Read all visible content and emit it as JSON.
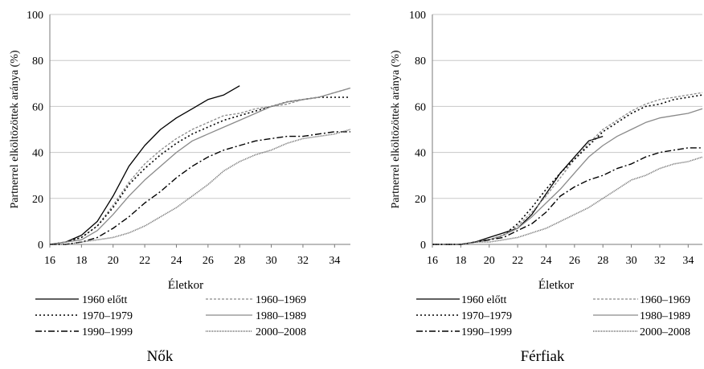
{
  "charts": [
    {
      "caption": "Nők",
      "chart_data": {
        "type": "line",
        "title": "",
        "xlabel": "Életkor",
        "ylabel": "Partnerrel elköltözöttek aránya (%)",
        "xlim": [
          16,
          35
        ],
        "ylim": [
          0,
          100
        ],
        "xticks": [
          "16",
          "18",
          "20",
          "22",
          "24",
          "26",
          "28",
          "30",
          "32",
          "34"
        ],
        "yticks": [
          "0",
          "20",
          "40",
          "60",
          "80",
          "100"
        ],
        "grid": true,
        "legend": "bottom",
        "series": [
          {
            "name": "1960 előtt",
            "x": [
              16,
              17,
              18,
              19,
              20,
              21,
              22,
              23,
              24,
              25,
              26,
              27,
              28
            ],
            "values": [
              0,
              1,
              4,
              10,
              21,
              34,
              43,
              50,
              55,
              59,
              63,
              65,
              69
            ]
          },
          {
            "name": "1960–1969",
            "x": [
              16,
              17,
              18,
              19,
              20,
              21,
              22,
              23,
              24,
              25,
              26,
              27,
              28,
              29,
              30,
              31,
              32,
              33,
              34,
              35
            ],
            "values": [
              0,
              1,
              3,
              8,
              17,
              27,
              35,
              41,
              46,
              50,
              53,
              56,
              57,
              59,
              60,
              61,
              63,
              64,
              66,
              68
            ]
          },
          {
            "name": "1970–1979",
            "x": [
              16,
              17,
              18,
              19,
              20,
              21,
              22,
              23,
              24,
              25,
              26,
              27,
              28,
              29,
              30,
              31,
              32,
              33,
              34,
              35
            ],
            "values": [
              0,
              1,
              3,
              8,
              16,
              26,
              33,
              39,
              44,
              48,
              51,
              54,
              56,
              58,
              60,
              62,
              63,
              64,
              64,
              64
            ]
          },
          {
            "name": "1980–1989",
            "x": [
              16,
              17,
              18,
              19,
              20,
              21,
              22,
              23,
              24,
              25,
              26,
              27,
              28,
              29,
              30,
              31,
              32,
              33,
              34,
              35
            ],
            "values": [
              0,
              1,
              2,
              6,
              13,
              21,
              28,
              34,
              40,
              45,
              48,
              51,
              54,
              57,
              60,
              62,
              63,
              64,
              66,
              68
            ]
          },
          {
            "name": "1990–1999",
            "x": [
              16,
              17,
              18,
              19,
              20,
              21,
              22,
              23,
              24,
              25,
              26,
              27,
              28,
              29,
              30,
              31,
              32,
              33,
              34,
              35
            ],
            "values": [
              0,
              0,
              1,
              3,
              7,
              12,
              18,
              23,
              29,
              34,
              38,
              41,
              43,
              45,
              46,
              47,
              47,
              48,
              49,
              49
            ]
          },
          {
            "name": "2000–2008",
            "x": [
              16,
              17,
              18,
              19,
              20,
              21,
              22,
              23,
              24,
              25,
              26,
              27,
              28,
              29,
              30,
              31,
              32,
              33,
              34,
              35
            ],
            "values": [
              0,
              0,
              1,
              2,
              3,
              5,
              8,
              12,
              16,
              21,
              26,
              32,
              36,
              39,
              41,
              44,
              46,
              47,
              48,
              50
            ]
          }
        ]
      }
    },
    {
      "caption": "Férfiak",
      "chart_data": {
        "type": "line",
        "title": "",
        "xlabel": "Életkor",
        "ylabel": "Partnerrel elköltözöttek aránya (%)",
        "xlim": [
          16,
          35
        ],
        "ylim": [
          0,
          100
        ],
        "xticks": [
          "16",
          "18",
          "20",
          "22",
          "24",
          "26",
          "28",
          "30",
          "32",
          "34"
        ],
        "yticks": [
          "0",
          "20",
          "40",
          "60",
          "80",
          "100"
        ],
        "grid": true,
        "legend": "bottom",
        "series": [
          {
            "name": "1960 előtt",
            "x": [
              16,
              17,
              18,
              19,
              20,
              21,
              22,
              23,
              24,
              25,
              26,
              27,
              28
            ],
            "values": [
              0,
              0,
              0,
              1,
              3,
              5,
              7,
              13,
              22,
              31,
              38,
              45,
              47
            ]
          },
          {
            "name": "1960–1969",
            "x": [
              16,
              17,
              18,
              19,
              20,
              21,
              22,
              23,
              24,
              25,
              26,
              27,
              28,
              29,
              30,
              31,
              32,
              33,
              34,
              35
            ],
            "values": [
              0,
              0,
              0,
              1,
              2,
              4,
              8,
              14,
              21,
              29,
              37,
              44,
              50,
              54,
              58,
              61,
              63,
              64,
              65,
              66
            ]
          },
          {
            "name": "1970–1979",
            "x": [
              16,
              17,
              18,
              19,
              20,
              21,
              22,
              23,
              24,
              25,
              26,
              27,
              28,
              29,
              30,
              31,
              32,
              33,
              34,
              35
            ],
            "values": [
              0,
              0,
              0,
              1,
              2,
              4,
              9,
              16,
              24,
              31,
              37,
              43,
              49,
              53,
              57,
              60,
              61,
              63,
              64,
              65
            ]
          },
          {
            "name": "1980–1989",
            "x": [
              16,
              17,
              18,
              19,
              20,
              21,
              22,
              23,
              24,
              25,
              26,
              27,
              28,
              29,
              30,
              31,
              32,
              33,
              34,
              35
            ],
            "values": [
              0,
              0,
              0,
              1,
              2,
              4,
              7,
              12,
              18,
              24,
              31,
              38,
              43,
              47,
              50,
              53,
              55,
              56,
              57,
              59
            ]
          },
          {
            "name": "1990–1999",
            "x": [
              16,
              17,
              18,
              19,
              20,
              21,
              22,
              23,
              24,
              25,
              26,
              27,
              28,
              29,
              30,
              31,
              32,
              33,
              34,
              35
            ],
            "values": [
              0,
              0,
              0,
              1,
              2,
              3,
              6,
              9,
              14,
              21,
              25,
              28,
              30,
              33,
              35,
              38,
              40,
              41,
              42,
              42
            ]
          },
          {
            "name": "2000–2008",
            "x": [
              16,
              17,
              18,
              19,
              20,
              21,
              22,
              23,
              24,
              25,
              26,
              27,
              28,
              29,
              30,
              31,
              32,
              33,
              34,
              35
            ],
            "values": [
              0,
              0,
              0,
              1,
              1,
              2,
              3,
              5,
              7,
              10,
              13,
              16,
              20,
              24,
              28,
              30,
              33,
              35,
              36,
              38
            ]
          }
        ]
      }
    }
  ],
  "styles": [
    {
      "color": "#000000",
      "dash": "",
      "width": 1.3
    },
    {
      "color": "#8a8a8a",
      "dash": "3,2",
      "width": 1.3
    },
    {
      "color": "#000000",
      "dash": "2,3",
      "width": 1.6
    },
    {
      "color": "#8a8a8a",
      "dash": "",
      "width": 1.3
    },
    {
      "color": "#000000",
      "dash": "8,3,2,3",
      "width": 1.4
    },
    {
      "color": "#666666",
      "dash": "1,1",
      "width": 1.6
    }
  ],
  "gridColor": "#c8c8c8"
}
